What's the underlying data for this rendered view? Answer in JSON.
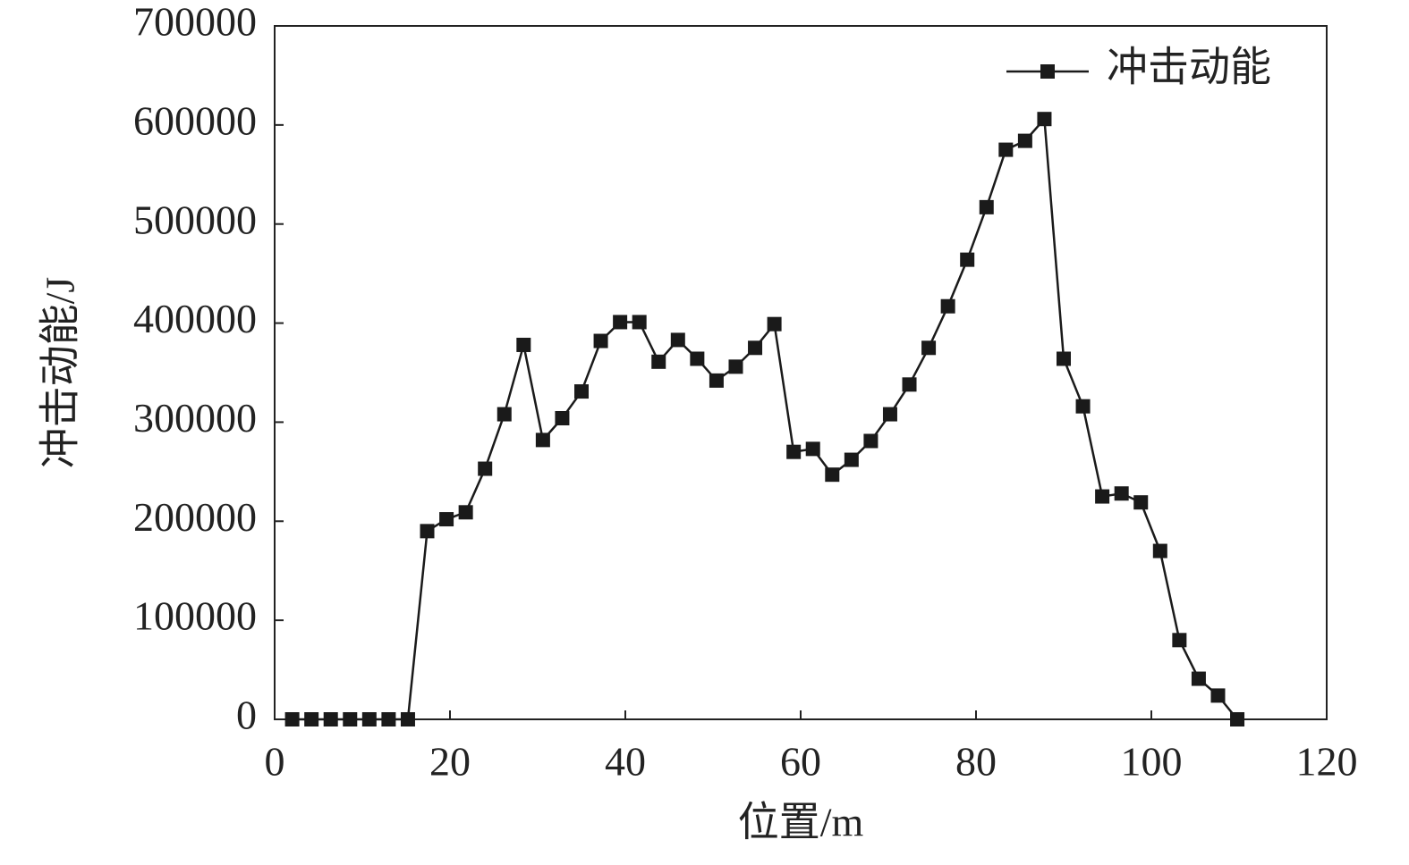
{
  "chart_data": {
    "type": "line",
    "x_label": "位置/m",
    "y_label": "冲击动能/J",
    "x": [
      2.0,
      4.2,
      6.4,
      8.6,
      10.8,
      13.0,
      15.2,
      17.4,
      19.6,
      21.8,
      24.0,
      26.2,
      28.4,
      30.6,
      32.8,
      35.0,
      37.2,
      39.4,
      41.6,
      43.8,
      46.0,
      48.2,
      50.4,
      52.6,
      54.8,
      57.0,
      59.2,
      61.4,
      63.6,
      65.8,
      68.0,
      70.2,
      72.4,
      74.6,
      76.8,
      79.0,
      81.2,
      83.4,
      85.6,
      87.8,
      90.0,
      92.2,
      94.4,
      96.6,
      98.8,
      101.0,
      103.2,
      105.4,
      107.6,
      109.8
    ],
    "series": [
      {
        "name": "冲击动能",
        "color": "#1a1a1a",
        "values": [
          0,
          0,
          0,
          0,
          0,
          0,
          0,
          190000,
          202000,
          209000,
          253000,
          308000,
          378000,
          282000,
          304000,
          331000,
          382000,
          401000,
          401000,
          361000,
          383000,
          364000,
          342000,
          356000,
          375000,
          399000,
          270000,
          273000,
          247000,
          262000,
          281000,
          308000,
          338000,
          375000,
          417000,
          464000,
          517000,
          575000,
          584000,
          606000,
          364000,
          316000,
          225000,
          228000,
          219000,
          170000,
          80000,
          41000,
          24000,
          0
        ]
      }
    ],
    "xlim": [
      0,
      120
    ],
    "xticks": [
      0,
      20,
      40,
      60,
      80,
      100,
      120
    ],
    "ylim": [
      0,
      700000
    ],
    "yticks": [
      0,
      100000,
      200000,
      300000,
      400000,
      500000,
      600000,
      700000
    ],
    "legend": "upper right",
    "grid": false
  }
}
